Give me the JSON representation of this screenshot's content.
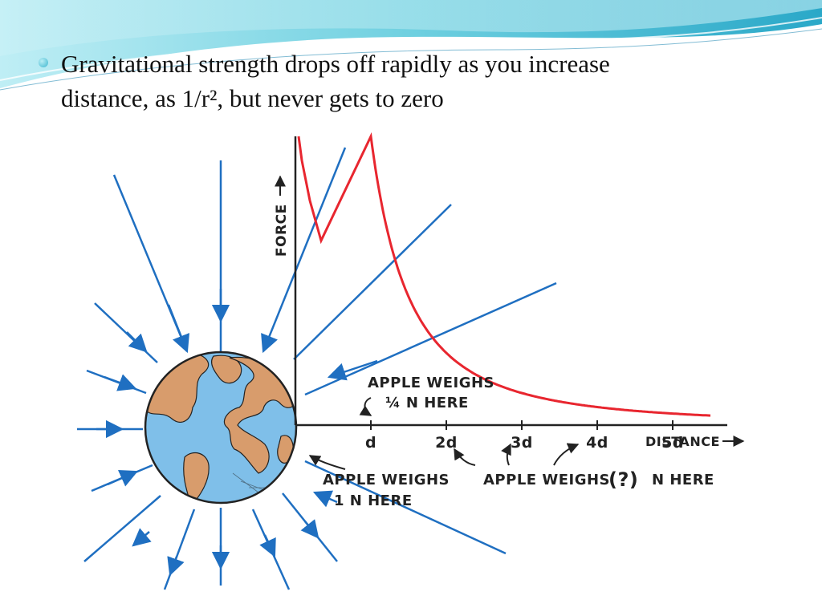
{
  "slide": {
    "bullet_text_1": "Gravitational strength drops off rapidly as you increase",
    "bullet_text_2": "distance, as 1/r², but never gets to zero"
  },
  "figure": {
    "y_axis_label": "FORCE",
    "x_axis_label": "DISTANCE",
    "ticks": [
      "d",
      "2d",
      "3d",
      "4d",
      "5d"
    ],
    "note_quarter_line1": "APPLE WEIGHS",
    "note_quarter_line2": "¼ N HERE",
    "note_one_line1": "APPLE WEIGHS",
    "note_one_line2": "1 N HERE",
    "note_unknown_a": "APPLE WEIGHS",
    "note_unknown_b": "(?)",
    "note_unknown_c": "N HERE"
  },
  "colors": {
    "curve": "#e8262f",
    "field_lines": "#1f6fc1",
    "earth_ocean": "#7fbfe9",
    "earth_land": "#d89c6c",
    "header_wave": "#6fd0e0"
  },
  "chart_data": {
    "type": "line",
    "title": "",
    "xlabel": "DISTANCE",
    "ylabel": "FORCE",
    "categories": [
      "d",
      "2d",
      "3d",
      "4d",
      "5d"
    ],
    "series": [
      {
        "values": [
          1,
          0.25,
          0.111,
          0.0625,
          0.04
        ]
      }
    ]
  }
}
